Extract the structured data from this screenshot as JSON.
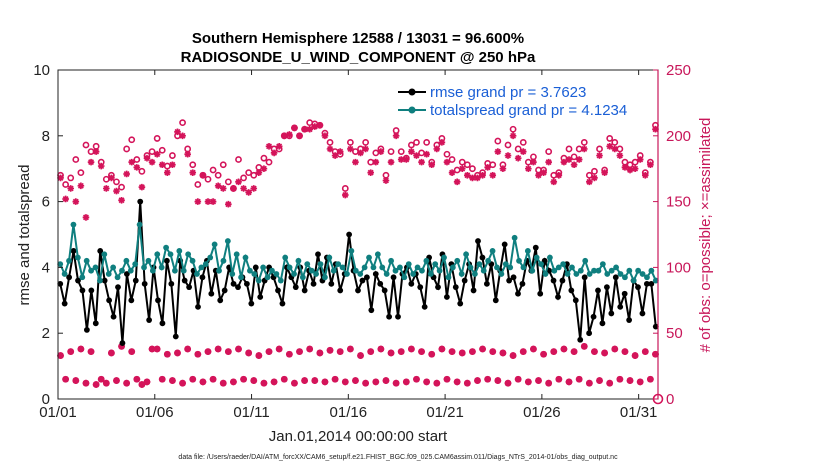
{
  "chart_data": {
    "type": "line",
    "title": "Southern Hemisphere 12588 / 13031 = 96.600%",
    "subtitle": "RADIOSONDE_U_WIND_COMPONENT @ 250 hPa",
    "xlabel": "Jan.01,2014 00:00:00 start",
    "ylabel": "rmse and totalspread",
    "ylabel_right": "# of obs: o=possible; ×=assimilated",
    "footer": "data file: /Users/raeder/DAI/ATM_forcXX/CAM6_setup/f.e21.FHIST_BGC.f09_025.CAM6assim.011/Diags_NTrS_2014-01/obs_diag_output.nc",
    "xlim": [
      1,
      32
    ],
    "ylim": [
      0,
      10
    ],
    "ylim_right": [
      0,
      250
    ],
    "x_ticks": [
      1,
      6,
      11,
      16,
      21,
      26,
      31
    ],
    "x_tick_labels": [
      "01/01",
      "01/06",
      "01/11",
      "01/16",
      "01/21",
      "01/26",
      "01/31"
    ],
    "y_ticks": [
      0,
      2,
      4,
      6,
      8,
      10
    ],
    "y_tick_labels": [
      "0",
      "2",
      "4",
      "6",
      "8",
      "10"
    ],
    "y_ticks_right": [
      0,
      50,
      100,
      150,
      200,
      250
    ],
    "y_tick_labels_right": [
      "0",
      "50",
      "100",
      "150",
      "200",
      "250"
    ],
    "legend": [
      "rmse grand pr = 3.7623",
      "totalspread grand pr = 4.1234"
    ],
    "colors": {
      "rmse": "#000000",
      "spread": "#0f7f7f",
      "obs": "#d4145a",
      "axis_right": "#c8175a",
      "legend_text": "#1a5fd6"
    },
    "series": [
      {
        "name": "rmse",
        "values": [
          3.5,
          2.9,
          3.7,
          4.5,
          3.6,
          3.3,
          2.1,
          3.3,
          2.3,
          4.5,
          3.6,
          3.0,
          2.5,
          3.4,
          1.7,
          3.8,
          3.0,
          3.6,
          6.0,
          3.5,
          2.4,
          4.0,
          3.0,
          2.3,
          4.2,
          3.5,
          1.9,
          4.2,
          3.6,
          3.4,
          3.9,
          2.8,
          3.7,
          4.2,
          3.2,
          3.9,
          3.0,
          3.3,
          4.0,
          3.5,
          3.4,
          3.7,
          3.5,
          2.9,
          4.0,
          3.1,
          3.6,
          4.0,
          3.7,
          3.3,
          2.9,
          4.0,
          3.7,
          3.4,
          4.0,
          3.3,
          3.9,
          3.5,
          4.4,
          3.6,
          4.3,
          3.5,
          4.1,
          3.3,
          3.8,
          5.0,
          3.9,
          3.3,
          3.6,
          3.7,
          2.7,
          3.8,
          3.5,
          3.3,
          2.5,
          3.7,
          2.5,
          3.8,
          4.0,
          3.5,
          3.8,
          3.4,
          2.8,
          4.3,
          3.7,
          3.4,
          4.4,
          3.1,
          4.1,
          3.4,
          2.9,
          3.6,
          4.1,
          3.3,
          4.8,
          4.3,
          3.5,
          4.1,
          3.0,
          3.9,
          4.7,
          3.6,
          3.7,
          3.2,
          3.5,
          4.2,
          3.9,
          4.6,
          3.2,
          4.2,
          3.9,
          3.6,
          3.1,
          3.6,
          4.1,
          3.3,
          3.0,
          1.8,
          3.7,
          2.0,
          2.5,
          3.3,
          2.3,
          3.4,
          2.6,
          3.7,
          2.8,
          3.2,
          2.4,
          3.6,
          3.4,
          2.6,
          3.5,
          3.5,
          2.2
        ]
      },
      {
        "name": "totalspread",
        "values": [
          4.1,
          3.8,
          4.2,
          5.3,
          4.3,
          3.7,
          4.2,
          3.9,
          4.0,
          3.6,
          4.4,
          3.8,
          4.0,
          3.7,
          3.9,
          4.2,
          3.9,
          4.1,
          5.3,
          4.0,
          4.2,
          3.9,
          4.4,
          4.0,
          4.6,
          4.4,
          3.9,
          4.5,
          3.9,
          4.4,
          4.2,
          3.8,
          4.0,
          4.1,
          4.3,
          4.7,
          3.9,
          4.2,
          4.8,
          3.8,
          4.4,
          3.7,
          4.3,
          3.9,
          3.8,
          3.6,
          4.0,
          3.7,
          3.9,
          3.8,
          3.6,
          4.3,
          4.0,
          3.8,
          4.2,
          3.7,
          4.1,
          3.9,
          3.8,
          4.1,
          3.7,
          4.3,
          3.9,
          4.1,
          4.0,
          3.8,
          4.5,
          3.9,
          3.8,
          4.0,
          4.3,
          4.0,
          4.4,
          4.0,
          3.8,
          4.2,
          3.9,
          4.0,
          3.7,
          4.1,
          3.8,
          4.0,
          3.9,
          4.2,
          3.8,
          4.1,
          3.9,
          4.3,
          3.7,
          4.0,
          4.2,
          3.8,
          4.4,
          4.0,
          3.8,
          4.1,
          3.9,
          4.2,
          4.5,
          4.0,
          3.8,
          4.1,
          4.0,
          4.9,
          4.2,
          4.0,
          4.5,
          3.9,
          4.3,
          4.1,
          3.8,
          4.3,
          3.9,
          4.0,
          4.1,
          3.8,
          4.0,
          3.8,
          3.9,
          4.2,
          3.8,
          3.9,
          3.9,
          4.1,
          3.8,
          3.9,
          4.0,
          3.8,
          3.7,
          3.9,
          3.6,
          3.9,
          3.8,
          3.7,
          3.9,
          3.6
        ]
      },
      {
        "name": "possible_top",
        "values": [
          170,
          163,
          168,
          182,
          172,
          193,
          188,
          192,
          180,
          167,
          170,
          165,
          161,
          190,
          197,
          182,
          173,
          185,
          188,
          198,
          189,
          177,
          185,
          200,
          210,
          190,
          178,
          163,
          170,
          167,
          174,
          170,
          178,
          165,
          160,
          182,
          168,
          172,
          170,
          176,
          183,
          180,
          190,
          190,
          200,
          200,
          206,
          200,
          205,
          210,
          209,
          208,
          202,
          195,
          188,
          186,
          160,
          195,
          188,
          190,
          195,
          180,
          187,
          190,
          170,
          188,
          204,
          188,
          183,
          193,
          195,
          187,
          195,
          180,
          193,
          198,
          186,
          182,
          174,
          180,
          178,
          175,
          170,
          172,
          179,
          178,
          196,
          178,
          193,
          205,
          190,
          195,
          180,
          184,
          174,
          174,
          188,
          170,
          172,
          183,
          190,
          184,
          190,
          195,
          170,
          173,
          190,
          174,
          198,
          195,
          190,
          180,
          178,
          180,
          185,
          172,
          180,
          208
        ]
      },
      {
        "name": "assimilated_top",
        "values": [
          168,
          152,
          160,
          150,
          162,
          138,
          180,
          188,
          177,
          160,
          168,
          158,
          151,
          171,
          180,
          176,
          161,
          183,
          180,
          186,
          178,
          172,
          178,
          203,
          200,
          186,
          172,
          150,
          170,
          150,
          150,
          162,
          160,
          148,
          160,
          165,
          160,
          157,
          160,
          172,
          175,
          192,
          187,
          192,
          200,
          201,
          206,
          200,
          205,
          205,
          207,
          208,
          200,
          190,
          185,
          188,
          155,
          190,
          180,
          187,
          190,
          172,
          180,
          188,
          166,
          180,
          200,
          182,
          182,
          188,
          185,
          180,
          186,
          178,
          190,
          195,
          180,
          172,
          165,
          175,
          170,
          168,
          168,
          170,
          176,
          170,
          188,
          175,
          185,
          200,
          183,
          188,
          175,
          180,
          170,
          172,
          180,
          165,
          170,
          180,
          182,
          178,
          182,
          190,
          165,
          168,
          185,
          172,
          192,
          190,
          185,
          176,
          174,
          175,
          182,
          170,
          178,
          205
        ]
      },
      {
        "name": "possible_bottom",
        "values": [
          33,
          15,
          36,
          14,
          38,
          12,
          36,
          11,
          15,
          12,
          35,
          14,
          40,
          12,
          36,
          15,
          11,
          13,
          38,
          38,
          15,
          34,
          14,
          35,
          12,
          38,
          15,
          34,
          13,
          36,
          15,
          38,
          12,
          36,
          13,
          38,
          15,
          35,
          14,
          33,
          12,
          36,
          13,
          38,
          15,
          34,
          12,
          36,
          14,
          38,
          14,
          35,
          13,
          37,
          15,
          36,
          13,
          38,
          14,
          33,
          12,
          36,
          13,
          38,
          14,
          35,
          12,
          36,
          13,
          38,
          15,
          36,
          13,
          34,
          12,
          38,
          15,
          36,
          13,
          35,
          12,
          36,
          14,
          38,
          15,
          36,
          14,
          35,
          12,
          33,
          15,
          36,
          13,
          38,
          14,
          34,
          12,
          36,
          15,
          38,
          13,
          36,
          15,
          40,
          12,
          36,
          14,
          35,
          12,
          38,
          15,
          36,
          14,
          33,
          13,
          36,
          15,
          34
        ]
      },
      {
        "name": "assimilated_bottom",
        "values": [
          33,
          15,
          36,
          14,
          38,
          12,
          36,
          11,
          15,
          12,
          35,
          14,
          40,
          12,
          36,
          15,
          11,
          13,
          38,
          38,
          15,
          34,
          14,
          35,
          12,
          38,
          15,
          34,
          13,
          36,
          15,
          38,
          12,
          36,
          13,
          38,
          15,
          35,
          14,
          33,
          12,
          36,
          13,
          38,
          15,
          34,
          12,
          36,
          14,
          38,
          14,
          35,
          13,
          37,
          15,
          36,
          13,
          38,
          14,
          33,
          12,
          36,
          13,
          38,
          14,
          35,
          12,
          36,
          13,
          38,
          15,
          36,
          13,
          34,
          12,
          38,
          15,
          36,
          13,
          35,
          12,
          36,
          14,
          38,
          15,
          36,
          14,
          35,
          12,
          33,
          15,
          36,
          13,
          38,
          14,
          34,
          12,
          36,
          15,
          38,
          13,
          36,
          15,
          40,
          12,
          36,
          14,
          35,
          12,
          38,
          15,
          36,
          14,
          33,
          13,
          36,
          15,
          34
        ]
      }
    ]
  }
}
